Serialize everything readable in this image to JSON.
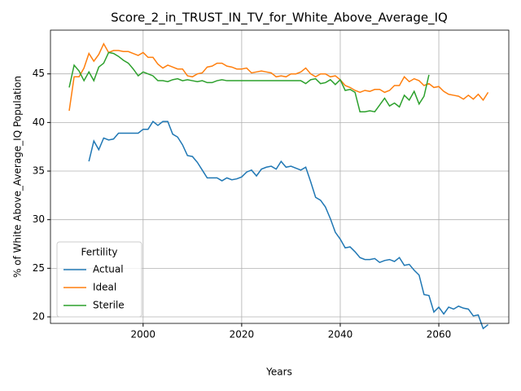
{
  "chart_data": {
    "type": "line",
    "title": "Score_2_in_TRUST_IN_TV_for_White_Above_Average_IQ",
    "xlabel": "Years",
    "ylabel": "% of White Above_Average_IQ Population",
    "x": [
      1985,
      1986,
      1987,
      1988,
      1989,
      1990,
      1991,
      1992,
      1993,
      1994,
      1995,
      1996,
      1997,
      1998,
      1999,
      2000,
      2001,
      2002,
      2003,
      2004,
      2005,
      2006,
      2007,
      2008,
      2009,
      2010,
      2011,
      2012,
      2013,
      2014,
      2015,
      2016,
      2017,
      2018,
      2019,
      2020,
      2021,
      2022,
      2023,
      2024,
      2025,
      2026,
      2027,
      2028,
      2029,
      2030,
      2031,
      2032,
      2033,
      2034,
      2035,
      2036,
      2037,
      2038,
      2039,
      2040,
      2041,
      2042,
      2043,
      2044,
      2045,
      2046,
      2047,
      2048,
      2049,
      2050,
      2051,
      2052,
      2053,
      2054,
      2055,
      2056,
      2057,
      2058,
      2059,
      2060,
      2061,
      2062,
      2063,
      2064,
      2065,
      2066,
      2067,
      2068,
      2069,
      2070
    ],
    "series": [
      {
        "name": "Actual",
        "color": "#1f77b4",
        "values": [
          null,
          null,
          null,
          null,
          36.0,
          38.1,
          37.2,
          38.4,
          38.2,
          38.3,
          38.9,
          38.9,
          38.9,
          38.9,
          38.9,
          39.3,
          39.3,
          40.1,
          39.7,
          40.1,
          40.1,
          38.8,
          38.5,
          37.7,
          36.6,
          36.5,
          35.9,
          35.1,
          34.3,
          34.3,
          34.3,
          34.0,
          34.3,
          34.1,
          34.2,
          34.4,
          34.9,
          35.1,
          34.5,
          35.2,
          35.4,
          35.5,
          35.2,
          36.0,
          35.4,
          35.5,
          35.3,
          35.1,
          35.4,
          33.9,
          32.3,
          32.0,
          31.3,
          30.1,
          28.7,
          28.0,
          27.1,
          27.2,
          26.7,
          26.1,
          25.9,
          25.9,
          26.0,
          25.6,
          25.8,
          25.9,
          25.7,
          26.1,
          25.3,
          25.4,
          24.8,
          24.3,
          22.3,
          22.2,
          20.5,
          21.0,
          20.3,
          21.0,
          20.8,
          21.1,
          20.9,
          20.8,
          20.1,
          20.2,
          18.8,
          19.2
        ]
      },
      {
        "name": "Ideal",
        "color": "#ff7f0e",
        "values": [
          41.2,
          44.7,
          44.7,
          45.6,
          47.1,
          46.3,
          47.0,
          48.1,
          47.2,
          47.4,
          47.4,
          47.3,
          47.3,
          47.1,
          46.9,
          47.2,
          46.7,
          46.7,
          46.0,
          45.6,
          45.9,
          45.7,
          45.5,
          45.5,
          44.8,
          44.7,
          45.0,
          45.1,
          45.7,
          45.8,
          46.1,
          46.1,
          45.8,
          45.7,
          45.5,
          45.5,
          45.6,
          45.1,
          45.2,
          45.3,
          45.2,
          45.1,
          44.7,
          44.8,
          44.7,
          45.0,
          45.0,
          45.2,
          45.6,
          45.0,
          44.7,
          45.0,
          45.0,
          44.7,
          44.8,
          44.4,
          43.8,
          43.6,
          43.3,
          43.1,
          43.3,
          43.2,
          43.4,
          43.4,
          43.1,
          43.3,
          43.8,
          43.8,
          44.7,
          44.2,
          44.5,
          44.3,
          43.8,
          44.0,
          43.6,
          43.7,
          43.2,
          42.9,
          42.8,
          42.7,
          42.4,
          42.8,
          42.4,
          42.9,
          42.3,
          43.1
        ]
      },
      {
        "name": "Sterile",
        "color": "#2ca02c",
        "values": [
          43.6,
          45.9,
          45.3,
          44.3,
          45.2,
          44.3,
          45.7,
          46.1,
          47.2,
          47.1,
          46.8,
          46.4,
          46.1,
          45.5,
          44.8,
          45.2,
          45.0,
          44.8,
          44.3,
          44.3,
          44.2,
          44.4,
          44.5,
          44.3,
          44.4,
          44.3,
          44.2,
          44.3,
          44.1,
          44.1,
          44.3,
          44.4,
          44.3,
          44.3,
          44.3,
          44.3,
          44.3,
          44.3,
          44.3,
          44.3,
          44.3,
          44.3,
          44.3,
          44.3,
          44.3,
          44.3,
          44.3,
          44.3,
          44.0,
          44.4,
          44.5,
          44.0,
          44.1,
          44.4,
          43.9,
          44.4,
          43.3,
          43.4,
          43.1,
          41.1,
          41.1,
          41.2,
          41.1,
          41.8,
          42.5,
          41.7,
          42.0,
          41.6,
          42.8,
          42.3,
          43.2,
          41.9,
          42.7,
          44.9,
          null,
          null,
          null,
          null,
          null,
          null,
          null,
          null,
          null,
          null,
          null,
          null
        ]
      }
    ],
    "xlim": [
      1981.2,
      2074.2
    ],
    "xticks": [
      2000,
      2020,
      2040,
      2060
    ],
    "ylim": [
      19.33,
      49.5
    ],
    "yticks": [
      20,
      25,
      30,
      35,
      40,
      45
    ],
    "grid": true,
    "legend": {
      "title": "Fertility",
      "loc": "lower left"
    }
  }
}
